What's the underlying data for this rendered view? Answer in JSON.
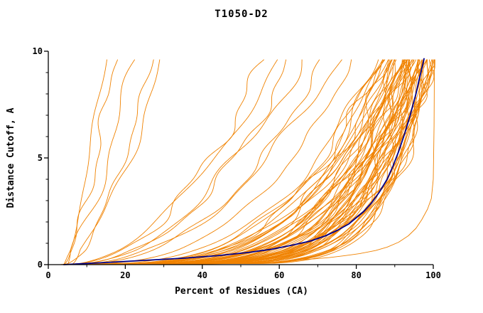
{
  "chart_data": {
    "type": "line",
    "title": "T1050-D2",
    "xlabel": "Percent of Residues (CA)",
    "ylabel": "Distance Cutoff, A",
    "xlim": [
      0,
      100
    ],
    "ylim": [
      0,
      10
    ],
    "x_major_ticks": [
      0,
      20,
      40,
      60,
      80,
      100
    ],
    "x_minor_ticks": [
      10,
      30,
      50,
      70,
      90
    ],
    "y_major_ticks": [
      0,
      5,
      10
    ],
    "y_minor_ticks": [
      1,
      2,
      3,
      4,
      6,
      7,
      8,
      9
    ],
    "grid": false,
    "legend": "none",
    "y_top": 9.6,
    "colors": {
      "models": "#f08200",
      "highlight": "#00008b",
      "axis": "#000000"
    },
    "highlight_series": {
      "name": "highlighted-model",
      "points": [
        [
          4,
          0
        ],
        [
          15,
          0.1
        ],
        [
          25,
          0.2
        ],
        [
          35,
          0.3
        ],
        [
          44,
          0.42
        ],
        [
          52,
          0.57
        ],
        [
          58,
          0.72
        ],
        [
          63,
          0.9
        ],
        [
          68,
          1.1
        ],
        [
          72,
          1.35
        ],
        [
          75,
          1.6
        ],
        [
          78,
          1.9
        ],
        [
          80,
          2.2
        ],
        [
          82,
          2.5
        ],
        [
          84,
          2.9
        ],
        [
          86,
          3.4
        ],
        [
          88,
          4.0
        ],
        [
          89.5,
          4.6
        ],
        [
          91,
          5.3
        ],
        [
          92.5,
          6.1
        ],
        [
          94,
          7.0
        ],
        [
          95.5,
          8.0
        ],
        [
          96.5,
          8.8
        ],
        [
          97.3,
          9.4
        ],
        [
          97.6,
          9.65
        ]
      ]
    },
    "outlier_series": {
      "name": "outlier-model",
      "points": [
        [
          65,
          0.22
        ],
        [
          69,
          0.27
        ],
        [
          73,
          0.33
        ],
        [
          77,
          0.42
        ],
        [
          81,
          0.52
        ],
        [
          85,
          0.66
        ],
        [
          88,
          0.82
        ],
        [
          91,
          1.05
        ],
        [
          93.5,
          1.35
        ],
        [
          95.5,
          1.7
        ],
        [
          97,
          2.1
        ],
        [
          98.5,
          2.6
        ],
        [
          99.5,
          3.1
        ],
        [
          100,
          4.0
        ],
        [
          100.2,
          6.5
        ],
        [
          100.3,
          9.6
        ]
      ]
    },
    "model_curve_param_legend": "each model curve = [start_percent_at_cutoff_0, percent_at_cutoff_9.6, curvature_exponent]",
    "model_curves": [
      [
        4,
        15,
        1.25
      ],
      [
        4,
        17,
        1.5
      ],
      [
        5,
        23,
        1.15
      ],
      [
        4,
        27,
        1.7
      ],
      [
        6,
        30,
        1.35
      ],
      [
        4,
        56,
        2.1
      ],
      [
        5,
        60,
        1.8
      ],
      [
        4,
        63,
        2.3
      ],
      [
        5,
        66,
        2.0
      ],
      [
        4,
        71,
        2.5
      ],
      [
        5,
        75,
        2.2
      ],
      [
        4,
        79,
        2.8
      ],
      [
        3,
        85,
        3.2
      ],
      [
        4,
        86,
        3.6
      ],
      [
        5,
        87,
        3.3
      ],
      [
        3,
        88,
        3.9
      ],
      [
        4,
        88,
        4.4
      ],
      [
        5,
        89,
        3.5
      ],
      [
        3,
        90,
        4.8
      ],
      [
        4,
        90,
        3.8
      ],
      [
        5,
        91,
        4.2
      ],
      [
        3,
        91,
        5.2
      ],
      [
        4,
        92,
        3.6
      ],
      [
        5,
        92,
        4.6
      ],
      [
        3,
        93,
        5.0
      ],
      [
        4,
        93,
        4.0
      ],
      [
        5,
        93,
        5.6
      ],
      [
        3,
        94,
        4.3
      ],
      [
        4,
        94,
        5.1
      ],
      [
        5,
        94,
        5.9
      ],
      [
        3,
        95,
        4.6
      ],
      [
        4,
        95,
        5.4
      ],
      [
        5,
        95,
        6.2
      ],
      [
        3,
        96,
        4.9
      ],
      [
        4,
        96,
        5.7
      ],
      [
        5,
        96,
        6.5
      ],
      [
        3,
        97,
        5.2
      ],
      [
        4,
        97,
        6.0
      ],
      [
        5,
        97,
        6.8
      ],
      [
        3,
        98,
        5.5
      ],
      [
        4,
        98,
        6.3
      ],
      [
        5,
        98,
        7.1
      ],
      [
        3,
        99,
        5.8
      ],
      [
        4,
        99,
        6.6
      ],
      [
        5,
        99,
        7.4
      ],
      [
        3,
        100,
        6.1
      ],
      [
        4,
        100,
        6.9
      ],
      [
        5,
        100,
        7.7
      ],
      [
        4,
        100,
        8.2
      ],
      [
        3,
        99.5,
        8.8
      ],
      [
        4,
        98.5,
        9.3
      ],
      [
        5,
        97.5,
        8.5
      ],
      [
        4,
        96.5,
        7.8
      ],
      [
        3,
        95.5,
        7.2
      ],
      [
        4,
        94.5,
        6.7
      ],
      [
        5,
        93.5,
        6.1
      ],
      [
        4,
        92.5,
        5.5
      ],
      [
        3.5,
        87.5,
        4.1
      ],
      [
        4.5,
        89.5,
        4.9
      ],
      [
        3.5,
        90.5,
        5.5
      ],
      [
        4.5,
        91.5,
        4.4
      ],
      [
        3.5,
        92.5,
        6.0
      ],
      [
        4.5,
        93.5,
        5.2
      ],
      [
        3.5,
        94.5,
        5.8
      ],
      [
        4.5,
        95.5,
        6.6
      ],
      [
        3.5,
        96.5,
        6.1
      ],
      [
        4.5,
        97.5,
        7.0
      ],
      [
        3.5,
        98.5,
        7.6
      ],
      [
        4.5,
        99.5,
        8.0
      ],
      [
        4,
        85.5,
        3.4
      ],
      [
        5,
        86.5,
        3.8
      ],
      [
        3,
        89,
        4.0
      ],
      [
        4,
        91,
        4.7
      ],
      [
        5,
        92,
        5.3
      ],
      [
        3,
        94,
        6.3
      ],
      [
        4,
        96,
        7.2
      ],
      [
        5,
        98,
        8.6
      ]
    ]
  }
}
